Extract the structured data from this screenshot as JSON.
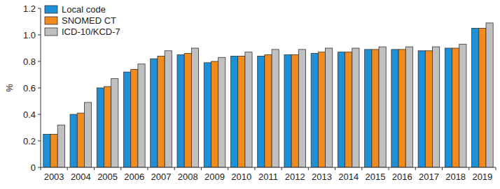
{
  "chart_data": {
    "type": "bar",
    "y_label": "%",
    "categories": [
      "2003",
      "2004",
      "2005",
      "2006",
      "2007",
      "2008",
      "2009",
      "2010",
      "2011",
      "2012",
      "2013",
      "2014",
      "2015",
      "2016",
      "2017",
      "2018",
      "2019"
    ],
    "series": [
      {
        "name": "Local code",
        "color": "#1e90d8",
        "values": [
          0.25,
          0.4,
          0.6,
          0.72,
          0.82,
          0.85,
          0.79,
          0.84,
          0.84,
          0.85,
          0.86,
          0.87,
          0.89,
          0.89,
          0.88,
          0.9,
          1.05
        ]
      },
      {
        "name": "SNOMED CT",
        "color": "#f28b1e",
        "values": [
          0.25,
          0.41,
          0.61,
          0.74,
          0.84,
          0.86,
          0.8,
          0.84,
          0.85,
          0.85,
          0.87,
          0.87,
          0.89,
          0.89,
          0.88,
          0.9,
          1.05
        ]
      },
      {
        "name": "ICD-10/KCD-7",
        "color": "#c0c0c0",
        "values": [
          0.32,
          0.49,
          0.67,
          0.78,
          0.88,
          0.9,
          0.83,
          0.87,
          0.89,
          0.89,
          0.9,
          0.9,
          0.91,
          0.91,
          0.91,
          0.93,
          1.09
        ]
      }
    ],
    "ylim": [
      0,
      1.2
    ],
    "yticks": [
      0,
      0.2,
      0.4,
      0.6,
      0.8,
      {
        "value": 1,
        "label": "1.0"
      },
      1.2
    ],
    "grid": false,
    "legend": "top-left"
  }
}
